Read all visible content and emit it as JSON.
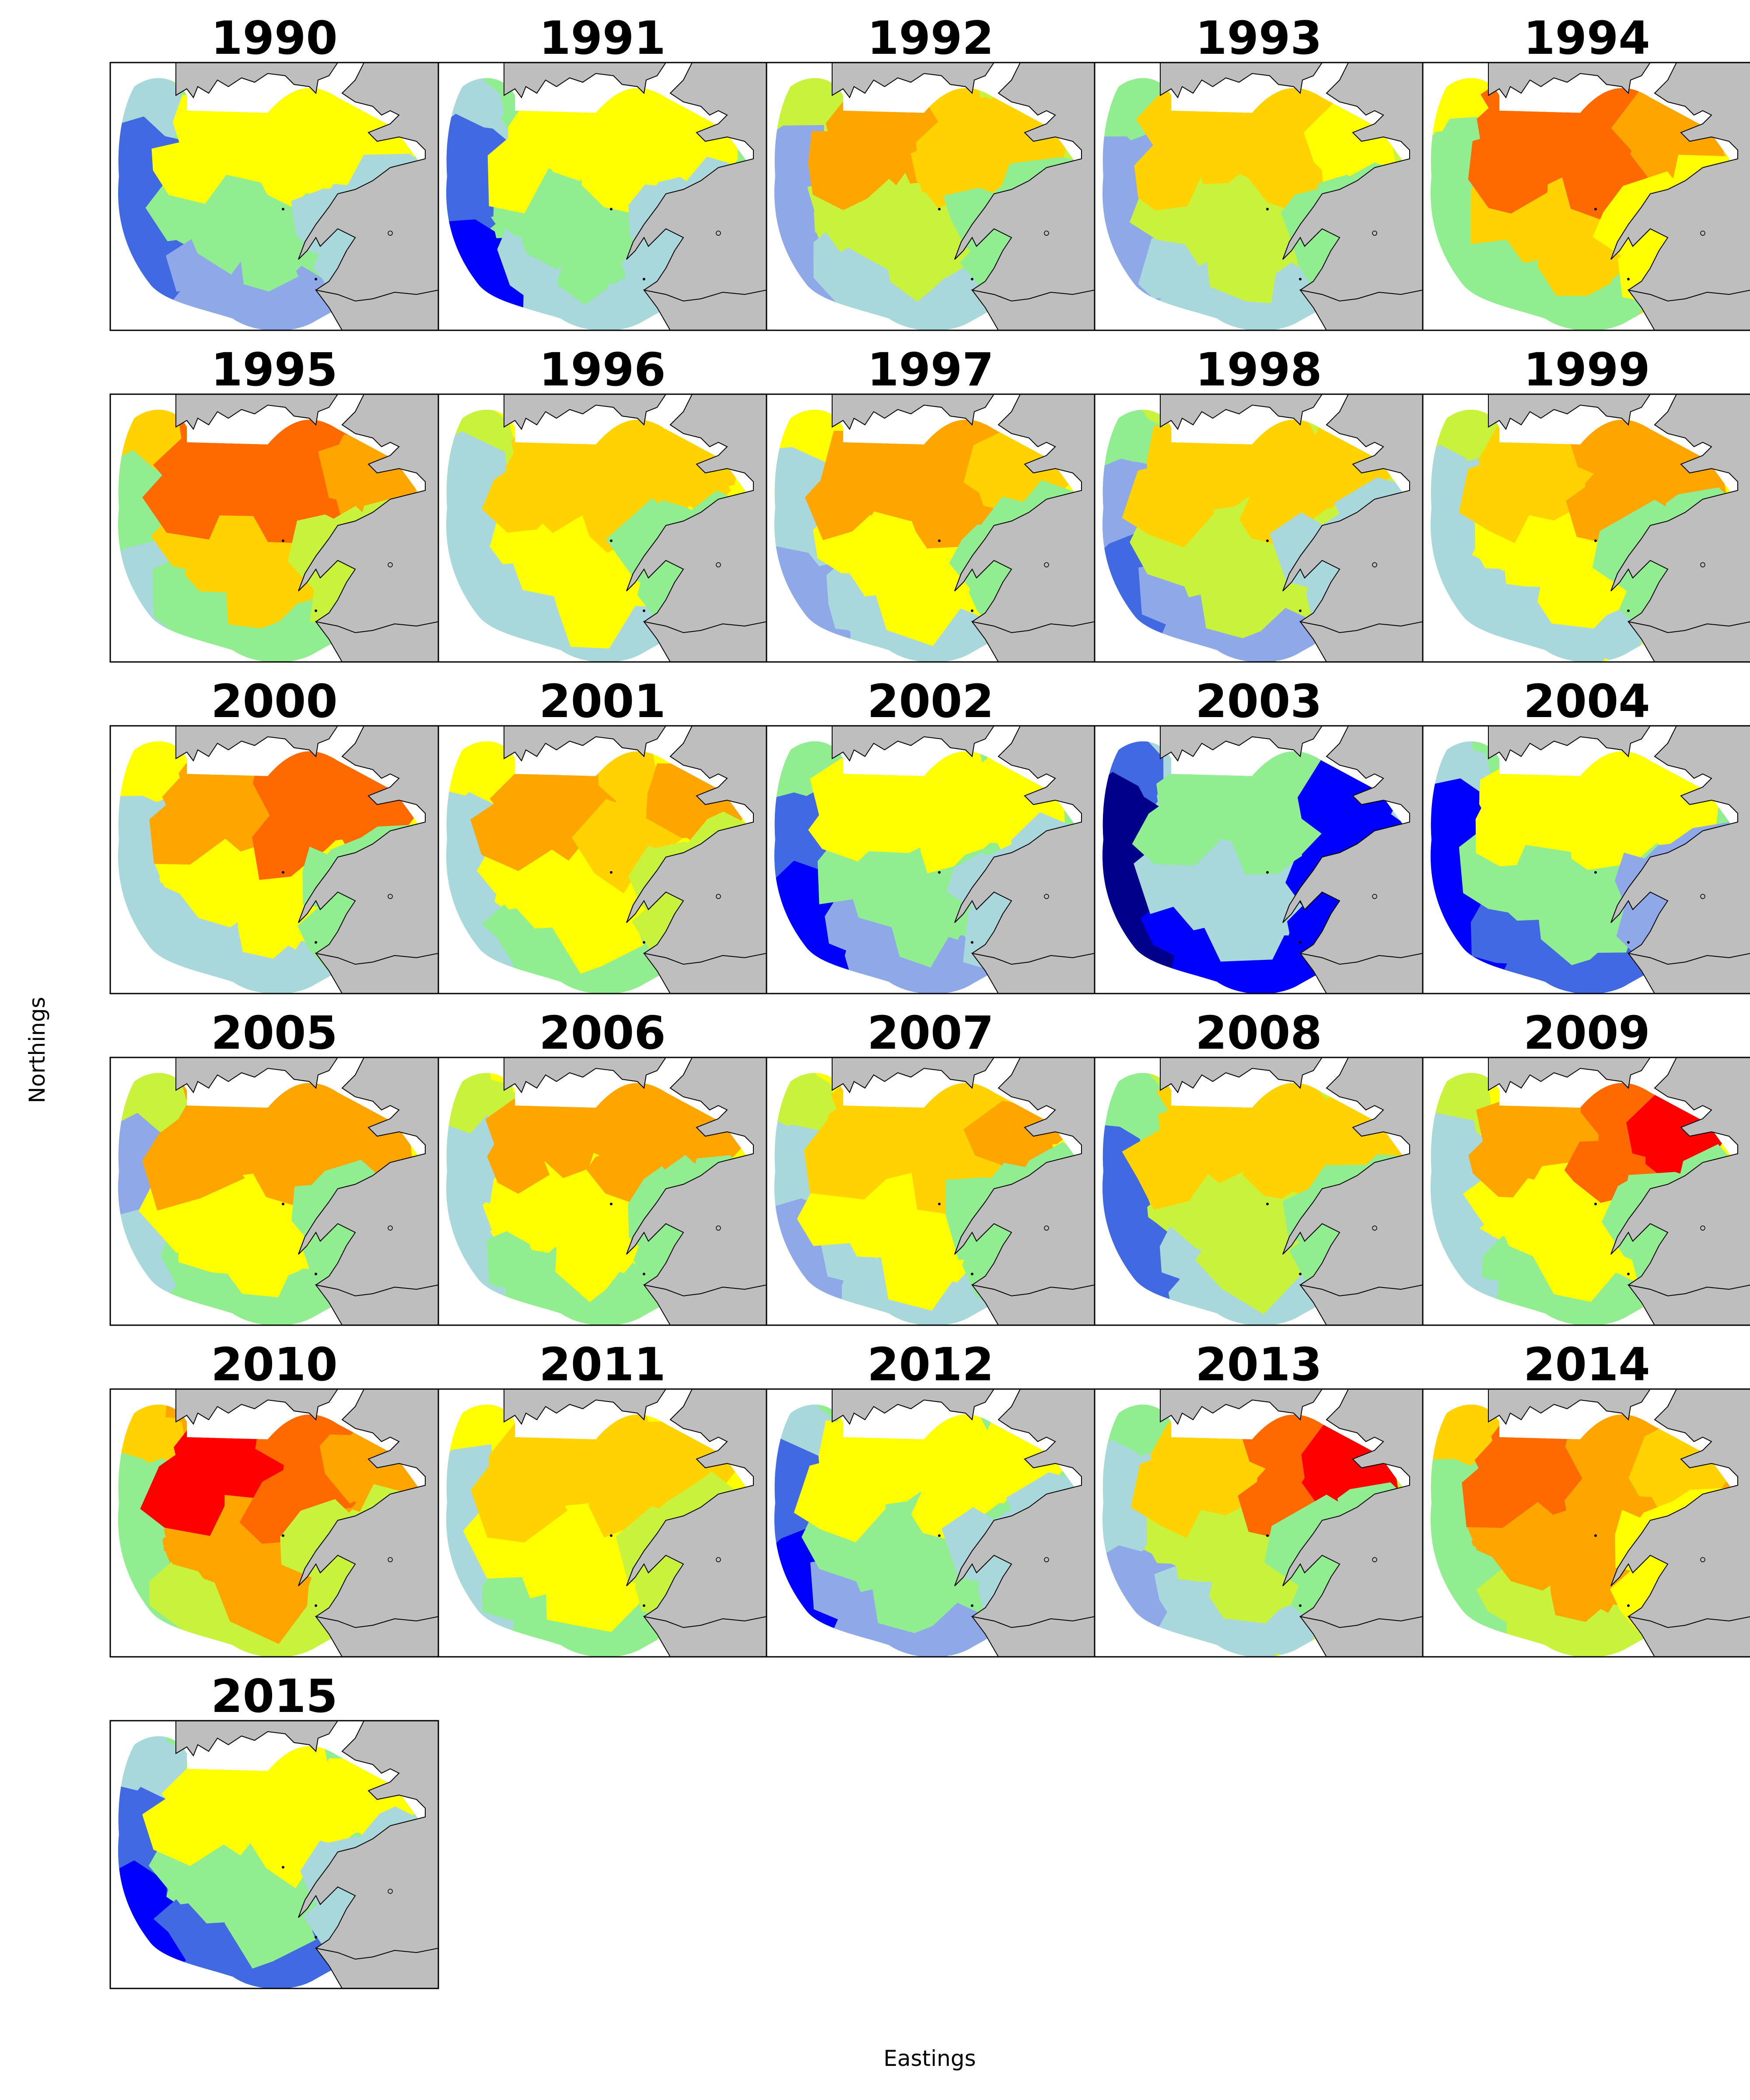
{
  "chart_data": {
    "type": "heatmap",
    "xlabel": "Eastings",
    "ylabel": "Northings",
    "grid": false,
    "layout": {
      "columns": 5,
      "rows": 6
    },
    "palette": {
      "stops": [
        "#00008b",
        "#0000ff",
        "#4169e1",
        "#8fa9e8",
        "#a8d8dc",
        "#90ee90",
        "#c9f23c",
        "#ffff00",
        "#ffd200",
        "#ffa500",
        "#ff6a00",
        "#ff0000"
      ],
      "land": "#bebebe",
      "coast": "#000000",
      "frame": "#000000"
    },
    "panels": [
      {
        "year": "1990",
        "levels": {
          "nw": 4,
          "w": 2,
          "sw": 2,
          "s": 3,
          "c": 5,
          "n": 7,
          "ne": 7,
          "est": 7,
          "e": 4
        }
      },
      {
        "year": "1991",
        "levels": {
          "nw": 4,
          "w": 2,
          "sw": 1,
          "s": 4,
          "c": 5,
          "n": 7,
          "ne": 7,
          "est": 7,
          "e": 4
        }
      },
      {
        "year": "1992",
        "levels": {
          "nw": 6,
          "w": 3,
          "sw": 3,
          "s": 4,
          "c": 6,
          "n": 9,
          "ne": 8,
          "est": 8,
          "e": 5
        }
      },
      {
        "year": "1993",
        "levels": {
          "nw": 5,
          "w": 3,
          "sw": 3,
          "s": 4,
          "c": 6,
          "n": 8,
          "ne": 8,
          "est": 7,
          "e": 5
        }
      },
      {
        "year": "1994",
        "levels": {
          "nw": 7,
          "w": 5,
          "sw": 5,
          "s": 5,
          "c": 8,
          "n": 10,
          "ne": 10,
          "est": 9,
          "e": 7
        }
      },
      {
        "year": "1995",
        "levels": {
          "nw": 8,
          "w": 5,
          "sw": 4,
          "s": 5,
          "c": 8,
          "n": 10,
          "ne": 10,
          "est": 9,
          "e": 6
        }
      },
      {
        "year": "1996",
        "levels": {
          "nw": 6,
          "w": 4,
          "sw": 4,
          "s": 4,
          "c": 7,
          "n": 8,
          "ne": 8,
          "est": 8,
          "e": 5
        }
      },
      {
        "year": "1997",
        "levels": {
          "nw": 7,
          "w": 4,
          "sw": 3,
          "s": 4,
          "c": 7,
          "n": 9,
          "ne": 9,
          "est": 8,
          "e": 5
        }
      },
      {
        "year": "1998",
        "levels": {
          "nw": 5,
          "w": 3,
          "sw": 2,
          "s": 3,
          "c": 6,
          "n": 8,
          "ne": 8,
          "est": 8,
          "e": 4
        }
      },
      {
        "year": "1999",
        "levels": {
          "nw": 6,
          "w": 4,
          "sw": 4,
          "s": 4,
          "c": 7,
          "n": 8,
          "ne": 9,
          "est": 9,
          "e": 5
        }
      },
      {
        "year": "2000",
        "levels": {
          "nw": 7,
          "w": 4,
          "sw": 4,
          "s": 4,
          "c": 7,
          "n": 9,
          "ne": 10,
          "est": 10,
          "e": 5
        }
      },
      {
        "year": "2001",
        "levels": {
          "nw": 7,
          "w": 4,
          "sw": 4,
          "s": 5,
          "c": 7,
          "n": 9,
          "ne": 8,
          "est": 9,
          "e": 6
        }
      },
      {
        "year": "2002",
        "levels": {
          "nw": 5,
          "w": 2,
          "sw": 1,
          "s": 3,
          "c": 5,
          "n": 7,
          "ne": 7,
          "est": 7,
          "e": 4
        }
      },
      {
        "year": "2003",
        "levels": {
          "nw": 2,
          "w": 0,
          "sw": 0,
          "s": 1,
          "c": 4,
          "n": 5,
          "ne": 5,
          "est": 1,
          "e": 1
        }
      },
      {
        "year": "2004",
        "levels": {
          "nw": 4,
          "w": 1,
          "sw": 1,
          "s": 2,
          "c": 5,
          "n": 7,
          "ne": 7,
          "est": 7,
          "e": 3
        }
      },
      {
        "year": "2005",
        "levels": {
          "nw": 6,
          "w": 3,
          "sw": 4,
          "s": 5,
          "c": 7,
          "n": 9,
          "ne": 9,
          "est": 9,
          "e": 5
        }
      },
      {
        "year": "2006",
        "levels": {
          "nw": 6,
          "w": 4,
          "sw": 4,
          "s": 5,
          "c": 7,
          "n": 9,
          "ne": 9,
          "est": 9,
          "e": 5
        }
      },
      {
        "year": "2007",
        "levels": {
          "nw": 6,
          "w": 4,
          "sw": 3,
          "s": 4,
          "c": 7,
          "n": 8,
          "ne": 8,
          "est": 9,
          "e": 5
        }
      },
      {
        "year": "2008",
        "levels": {
          "nw": 5,
          "w": 2,
          "sw": 2,
          "s": 4,
          "c": 6,
          "n": 8,
          "ne": 8,
          "est": 8,
          "e": 5
        }
      },
      {
        "year": "2009",
        "levels": {
          "nw": 6,
          "w": 4,
          "sw": 4,
          "s": 5,
          "c": 7,
          "n": 9,
          "ne": 10,
          "est": 11,
          "e": 5
        }
      },
      {
        "year": "2010",
        "levels": {
          "nw": 8,
          "w": 5,
          "sw": 5,
          "s": 6,
          "c": 9,
          "n": 11,
          "ne": 10,
          "est": 9,
          "e": 6
        }
      },
      {
        "year": "2011",
        "levels": {
          "nw": 7,
          "w": 4,
          "sw": 4,
          "s": 5,
          "c": 7,
          "n": 8,
          "ne": 8,
          "est": 8,
          "e": 6
        }
      },
      {
        "year": "2012",
        "levels": {
          "nw": 4,
          "w": 2,
          "sw": 1,
          "s": 3,
          "c": 5,
          "n": 7,
          "ne": 7,
          "est": 7,
          "e": 4
        }
      },
      {
        "year": "2013",
        "levels": {
          "nw": 5,
          "w": 4,
          "sw": 3,
          "s": 4,
          "c": 6,
          "n": 8,
          "ne": 10,
          "est": 11,
          "e": 5
        }
      },
      {
        "year": "2014",
        "levels": {
          "nw": 8,
          "w": 5,
          "sw": 5,
          "s": 6,
          "c": 9,
          "n": 10,
          "ne": 9,
          "est": 8,
          "e": 7
        }
      },
      {
        "year": "2015",
        "levels": {
          "nw": 4,
          "w": 2,
          "sw": 1,
          "s": 2,
          "c": 5,
          "n": 7,
          "ne": 7,
          "est": 7,
          "e": 4
        }
      }
    ]
  }
}
